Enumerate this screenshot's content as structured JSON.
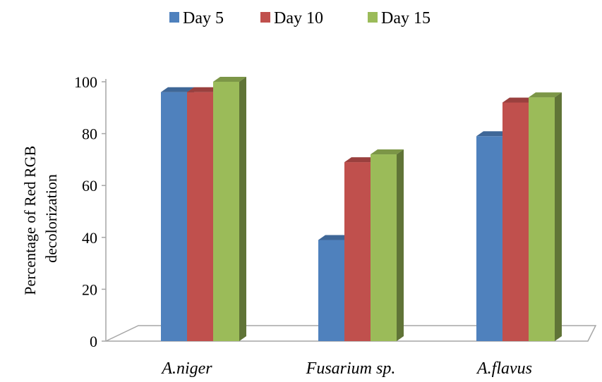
{
  "chart_data": {
    "type": "bar",
    "style": "3d-clustered-column",
    "title": "",
    "xlabel": "",
    "ylabel": [
      "Percentage of Red RGB",
      "decolorization"
    ],
    "ylim": [
      0,
      100
    ],
    "yticks": [
      0,
      20,
      40,
      60,
      80,
      100
    ],
    "categories": [
      "A.niger",
      "Fusarium sp.",
      "A.flavus"
    ],
    "series": [
      {
        "name": "Day 5",
        "values": [
          96,
          39,
          79
        ],
        "color": "#4f81bd"
      },
      {
        "name": "Day 10",
        "values": [
          96,
          69,
          92
        ],
        "color": "#c0504d"
      },
      {
        "name": "Day 15",
        "values": [
          100,
          72,
          94
        ],
        "color": "#9bbb59"
      }
    ],
    "legend": "top-center",
    "grid": false
  }
}
